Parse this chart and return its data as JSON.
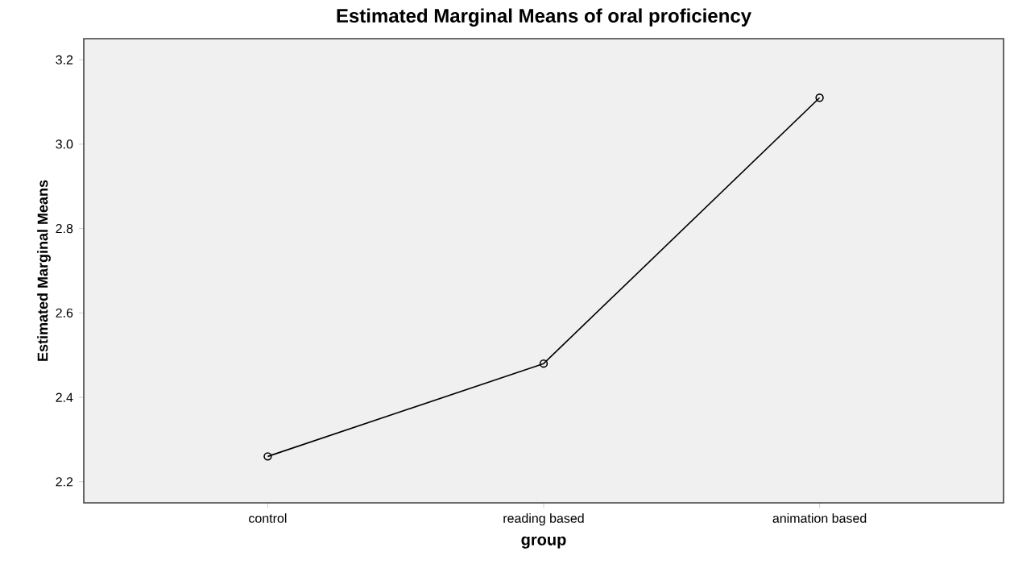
{
  "chart_data": {
    "type": "line",
    "title": "Estimated Marginal Means of oral proficiency",
    "xlabel": "group",
    "ylabel": "Estimated Marginal Means",
    "categories": [
      "control",
      "reading based",
      "animation based"
    ],
    "series": [
      {
        "color": "#000000",
        "values": [
          2.26,
          2.48,
          3.11
        ]
      }
    ],
    "ylim": [
      2.15,
      3.25
    ],
    "yticks": [
      {
        "value": 2.2,
        "label": "2.2"
      },
      {
        "value": 2.4,
        "label": "2.4"
      },
      {
        "value": 2.6,
        "label": "2.6"
      },
      {
        "value": 2.8,
        "label": "2.8"
      },
      {
        "value": 3.0,
        "label": "3.0"
      },
      {
        "value": 3.2,
        "label": "3.2"
      }
    ],
    "marker": "circle",
    "line_style": "solid"
  }
}
